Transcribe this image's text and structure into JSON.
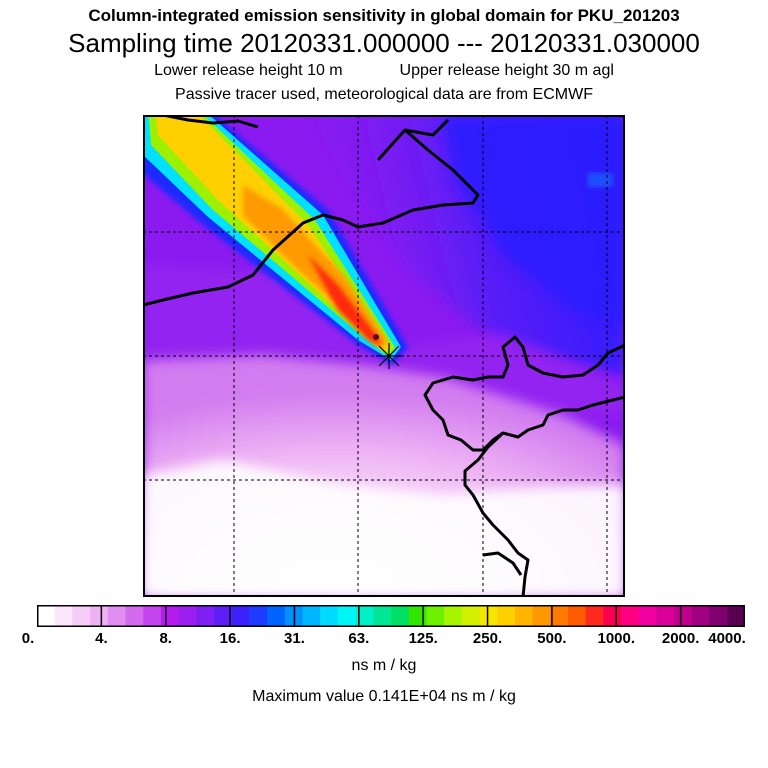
{
  "header": {
    "title": "Column-integrated emission sensitivity in global domain for PKU_201203",
    "sampling": "Sampling time   20120331.000000 --- 20120331.030000",
    "lower_release": "Lower release height   10 m",
    "upper_release": "Upper release height   30 m    agl",
    "note": "Passive tracer used, meteorological data are from ECMWF"
  },
  "legend": {
    "tick_labels": [
      "0.",
      "4.",
      "8.",
      "16.",
      "31.",
      "63.",
      "125.",
      "250.",
      "500.",
      "1000.",
      "2000.",
      "4000."
    ],
    "colors": [
      "#ffffff",
      "#fbe6fb",
      "#f5cdf7",
      "#eeb2f4",
      "#e08ff0",
      "#d46bef",
      "#c545ee",
      "#b41cee",
      "#9a1ff0",
      "#7f1ff3",
      "#5e1ff6",
      "#3c22fa",
      "#1e3cff",
      "#0064ff",
      "#0090ff",
      "#00b7ff",
      "#00dcff",
      "#00f5f5",
      "#00f0c8",
      "#00e696",
      "#00e064",
      "#32e600",
      "#6cf000",
      "#a6f400",
      "#d2f000",
      "#f5e600",
      "#ffd000",
      "#ffb400",
      "#ff9800",
      "#ff7a00",
      "#ff5a00",
      "#ff2a1e",
      "#ff0050",
      "#ff0080",
      "#f000a0",
      "#d80098",
      "#c0008c",
      "#a00080",
      "#800070",
      "#5a0050"
    ],
    "units": "ns m / kg",
    "max_value": "Maximum value  0.141E+04 ns m / kg"
  },
  "map": {
    "background_color": "#8a1af0",
    "plume_colors": [
      "#1a2cff",
      "#00e0ff",
      "#9cf000",
      "#ffd000",
      "#ff9a00",
      "#ff2a10"
    ]
  }
}
